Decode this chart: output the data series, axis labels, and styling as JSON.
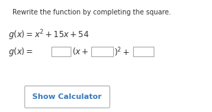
{
  "background_color": "#ffffff",
  "title_text": "Rewrite the function by completing the square.",
  "title_fontsize": 7.0,
  "eq1_fontsize": 8.5,
  "eq2_fontsize": 8.5,
  "button_text": "Show Calculator",
  "button_color": "#ffffff",
  "button_border_color": "#bbbbbb",
  "button_text_color": "#3a7bbf",
  "button_fontsize": 8.0,
  "text_color": "#333333",
  "box_edge_color": "#aaaaaa",
  "box_face_color": "#ffffff"
}
